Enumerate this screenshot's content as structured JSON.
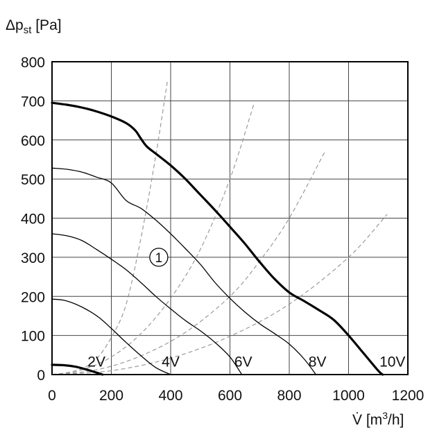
{
  "chart_data": {
    "type": "line",
    "title": "",
    "ylabel": {
      "main": "Δp",
      "sub": "st",
      "unit": " [Pa]"
    },
    "xlabel": {
      "main": "V̇",
      "unit_pre": " [m",
      "unit_sup": "3",
      "unit_post": "/h]"
    },
    "xlim": [
      0,
      1200
    ],
    "ylim": [
      0,
      800
    ],
    "grid": true,
    "x_ticks": [
      "0",
      "200",
      "400",
      "600",
      "800",
      "1000",
      "1200"
    ],
    "y_ticks": [
      "0",
      "100",
      "200",
      "300",
      "400",
      "500",
      "600",
      "700",
      "800"
    ],
    "fan_curves": [
      {
        "label": "2V",
        "bold": true,
        "points": [
          [
            0,
            25
          ],
          [
            40,
            24
          ],
          [
            80,
            20
          ],
          [
            120,
            12
          ],
          [
            150,
            5
          ],
          [
            170,
            0
          ]
        ]
      },
      {
        "label": "4V",
        "bold": false,
        "points": [
          [
            0,
            193
          ],
          [
            40,
            190
          ],
          [
            80,
            180
          ],
          [
            120,
            165
          ],
          [
            160,
            145
          ],
          [
            200,
            118
          ],
          [
            250,
            82
          ],
          [
            300,
            48
          ],
          [
            350,
            18
          ],
          [
            400,
            0
          ]
        ]
      },
      {
        "label": "6V",
        "bold": false,
        "points": [
          [
            0,
            360
          ],
          [
            50,
            355
          ],
          [
            100,
            343
          ],
          [
            150,
            320
          ],
          [
            200,
            295
          ],
          [
            250,
            268
          ],
          [
            300,
            235
          ],
          [
            350,
            200
          ],
          [
            400,
            168
          ],
          [
            450,
            138
          ],
          [
            500,
            112
          ],
          [
            550,
            82
          ],
          [
            600,
            45
          ],
          [
            640,
            0
          ]
        ]
      },
      {
        "label": "8V",
        "bold": false,
        "points": [
          [
            0,
            528
          ],
          [
            50,
            525
          ],
          [
            100,
            518
          ],
          [
            150,
            505
          ],
          [
            200,
            490
          ],
          [
            250,
            445
          ],
          [
            300,
            425
          ],
          [
            350,
            395
          ],
          [
            400,
            360
          ],
          [
            450,
            322
          ],
          [
            500,
            282
          ],
          [
            550,
            235
          ],
          [
            600,
            195
          ],
          [
            650,
            160
          ],
          [
            700,
            130
          ],
          [
            750,
            105
          ],
          [
            800,
            78
          ],
          [
            850,
            40
          ],
          [
            890,
            0
          ]
        ]
      },
      {
        "label": "10V",
        "bold": true,
        "points": [
          [
            0,
            695
          ],
          [
            50,
            690
          ],
          [
            100,
            683
          ],
          [
            150,
            673
          ],
          [
            200,
            660
          ],
          [
            250,
            643
          ],
          [
            280,
            625
          ],
          [
            300,
            603
          ],
          [
            320,
            583
          ],
          [
            350,
            565
          ],
          [
            400,
            535
          ],
          [
            450,
            500
          ],
          [
            500,
            460
          ],
          [
            550,
            420
          ],
          [
            600,
            378
          ],
          [
            650,
            335
          ],
          [
            700,
            288
          ],
          [
            750,
            245
          ],
          [
            800,
            210
          ],
          [
            850,
            188
          ],
          [
            900,
            165
          ],
          [
            950,
            140
          ],
          [
            1000,
            100
          ],
          [
            1050,
            55
          ],
          [
            1100,
            10
          ],
          [
            1115,
            0
          ]
        ]
      }
    ],
    "system_curves": [
      {
        "points": [
          [
            0,
            0
          ],
          [
            50,
            5
          ],
          [
            100,
            15
          ],
          [
            150,
            40
          ],
          [
            200,
            95
          ],
          [
            250,
            180
          ],
          [
            300,
            350
          ],
          [
            350,
            560
          ],
          [
            390,
            755
          ]
        ]
      },
      {
        "points": [
          [
            0,
            0
          ],
          [
            100,
            12
          ],
          [
            200,
            45
          ],
          [
            300,
            105
          ],
          [
            400,
            195
          ],
          [
            500,
            320
          ],
          [
            600,
            500
          ],
          [
            680,
            690
          ]
        ]
      },
      {
        "points": [
          [
            0,
            0
          ],
          [
            150,
            12
          ],
          [
            300,
            48
          ],
          [
            450,
            108
          ],
          [
            600,
            200
          ],
          [
            700,
            290
          ],
          [
            800,
            400
          ],
          [
            920,
            570
          ]
        ]
      },
      {
        "points": [
          [
            0,
            0
          ],
          [
            200,
            10
          ],
          [
            400,
            42
          ],
          [
            600,
            98
          ],
          [
            800,
            180
          ],
          [
            1000,
            300
          ],
          [
            1130,
            410
          ]
        ]
      }
    ],
    "annotation": {
      "text": "1",
      "x": 360,
      "y": 300
    }
  }
}
